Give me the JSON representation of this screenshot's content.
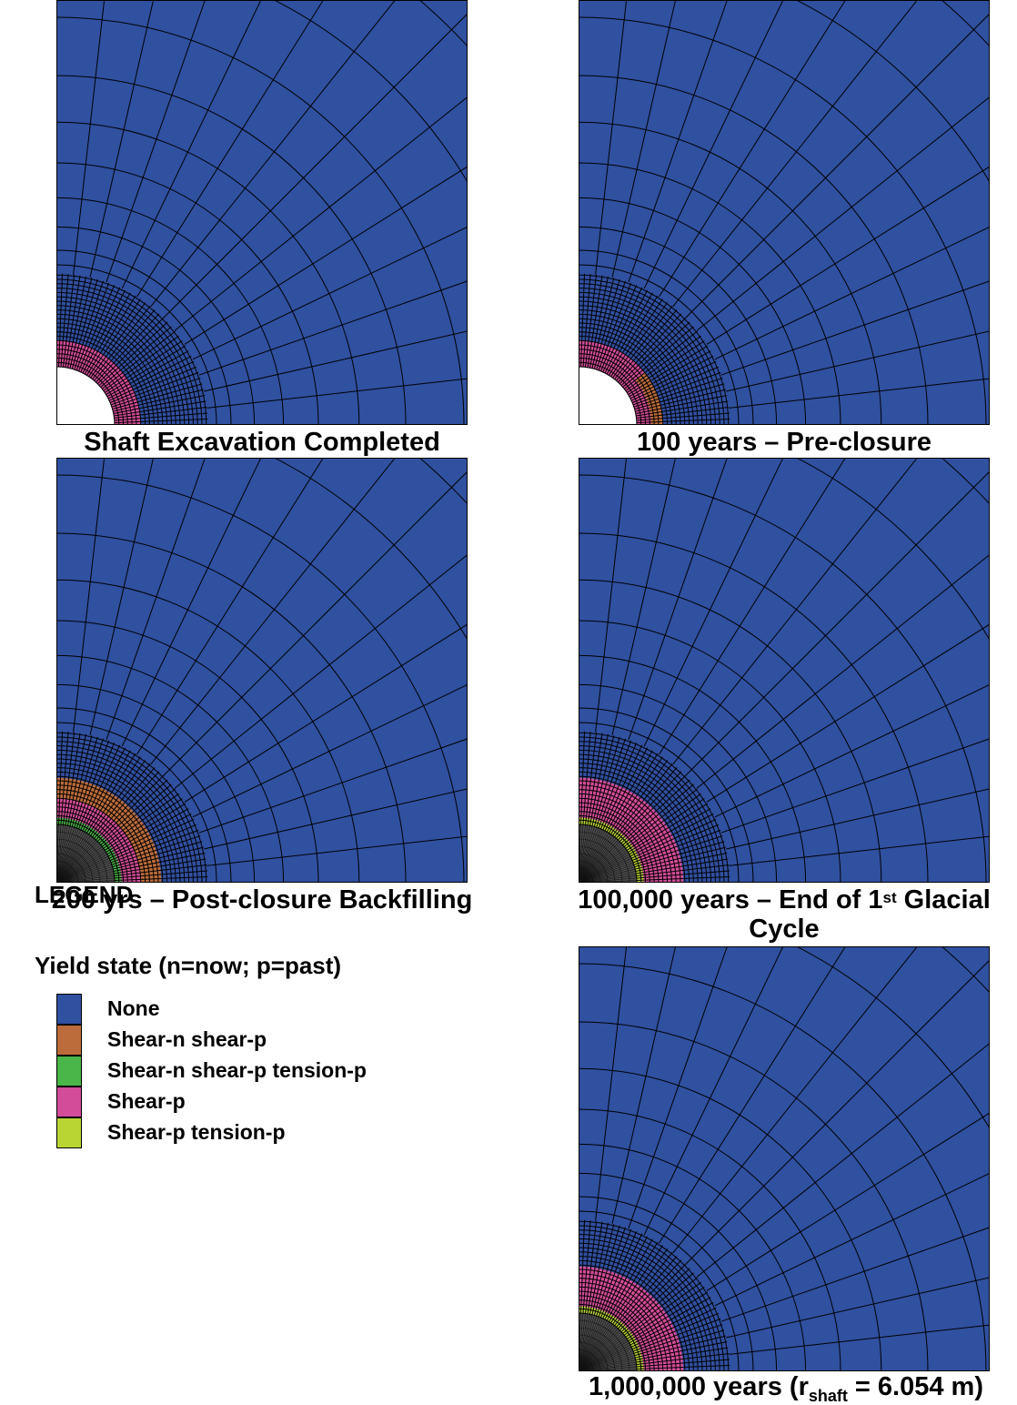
{
  "colors": {
    "none": "#3050a0",
    "shear_n_shear_p": "#bc6c3a",
    "shear_n_shear_p_tension_p": "#4ab548",
    "shear_p": "#d34c99",
    "shear_p_tension_p": "#b8d534",
    "backfill": "#4d4d4d",
    "mesh_line": "#000000"
  },
  "panels": [
    {
      "caption": "Shaft Excavation Completed",
      "zones": [
        {
          "state": "shear_p",
          "from": 1.0,
          "to": 1.45
        }
      ],
      "backfill": false
    },
    {
      "caption": "100 years – Pre-closure",
      "zones": [
        {
          "state": "shear_p",
          "from": 1.0,
          "to": 1.45
        },
        {
          "state": "shear_n_shear_p",
          "from": 1.25,
          "to": 1.45,
          "angle_to": 38
        }
      ],
      "backfill": false
    },
    {
      "caption": "200 yrs – Post-closure Backfilling",
      "zones": [
        {
          "state": "shear_n_shear_p_tension_p",
          "from": 1.0,
          "to": 1.12
        },
        {
          "state": "shear_p",
          "from": 1.12,
          "to": 1.45
        },
        {
          "state": "shear_n_shear_p",
          "from": 1.45,
          "to": 1.8
        }
      ],
      "backfill": true
    },
    {
      "caption_main": "100,000 years – End of 1",
      "caption_sup": "st",
      "caption_after": " Glacial",
      "caption_line2": "Cycle",
      "zones": [
        {
          "state": "shear_p_tension_p",
          "from": 1.0,
          "to": 1.12
        },
        {
          "state": "shear_p",
          "from": 1.12,
          "to": 1.8
        }
      ],
      "backfill": true
    },
    {
      "caption_main": "1,000,000 years (r",
      "caption_sub": "shaft",
      "caption_after": " = 6.054 m)",
      "zones": [
        {
          "state": "shear_p_tension_p",
          "from": 1.0,
          "to": 1.12
        },
        {
          "state": "shear_p",
          "from": 1.12,
          "to": 1.8
        }
      ],
      "backfill": true
    }
  ],
  "legend": {
    "title": "LEGEND",
    "subtitle": "Yield state (n=now; p=past)",
    "items": [
      {
        "label": "None",
        "state": "none"
      },
      {
        "label": "Shear-n shear-p",
        "state": "shear_n_shear_p"
      },
      {
        "label": "Shear-n shear-p tension-p",
        "state": "shear_n_shear_p_tension_p"
      },
      {
        "label": "Shear-p",
        "state": "shear_p"
      },
      {
        "label": "Shear-p tension-p",
        "state": "shear_p_tension_p"
      }
    ]
  }
}
